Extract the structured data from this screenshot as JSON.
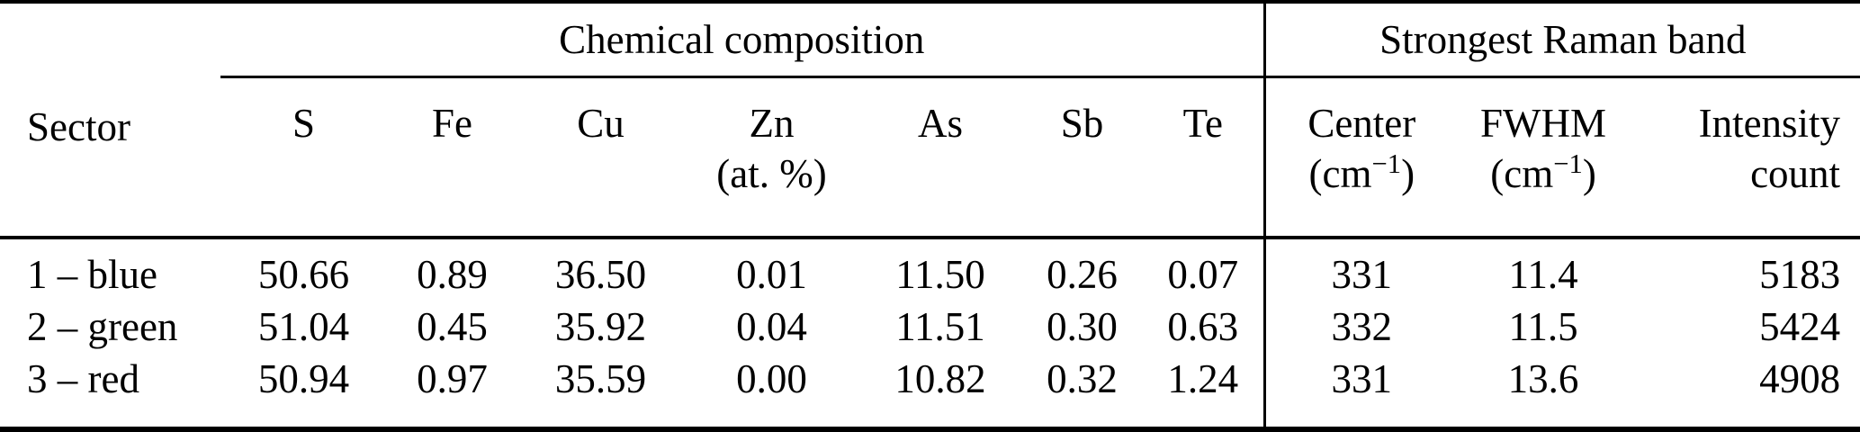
{
  "table": {
    "sector_header": "Sector",
    "group_headers": {
      "chemical": "Chemical composition",
      "raman": "Strongest Raman band"
    },
    "column_headers": {
      "s": "S",
      "fe": "Fe",
      "cu": "Cu",
      "zn": "Zn",
      "zn_unit": "(at. %)",
      "as": "As",
      "sb": "Sb",
      "te": "Te",
      "center": "Center",
      "fwhm": "FWHM",
      "intensity": "Intensity",
      "intensity_sub": "count",
      "wavenumber_unit_pre": "(cm",
      "wavenumber_unit_sup": "−1",
      "wavenumber_unit_post": ")"
    },
    "rows": [
      {
        "sector": "1 – blue",
        "s": "50.66",
        "fe": "0.89",
        "cu": "36.50",
        "zn": "0.01",
        "as": "11.50",
        "sb": "0.26",
        "te": "0.07",
        "center": "331",
        "fwhm": "11.4",
        "intensity": "5183"
      },
      {
        "sector": "2 – green",
        "s": "51.04",
        "fe": "0.45",
        "cu": "35.92",
        "zn": "0.04",
        "as": "11.51",
        "sb": "0.30",
        "te": "0.63",
        "center": "332",
        "fwhm": "11.5",
        "intensity": "5424"
      },
      {
        "sector": "3 – red",
        "s": "50.94",
        "fe": "0.97",
        "cu": "35.59",
        "zn": "0.00",
        "as": "10.82",
        "sb": "0.32",
        "te": "1.24",
        "center": "331",
        "fwhm": "13.6",
        "intensity": "4908"
      }
    ]
  },
  "colors": {
    "text": "#000000",
    "background": "#ffffff",
    "rule": "#000000"
  }
}
